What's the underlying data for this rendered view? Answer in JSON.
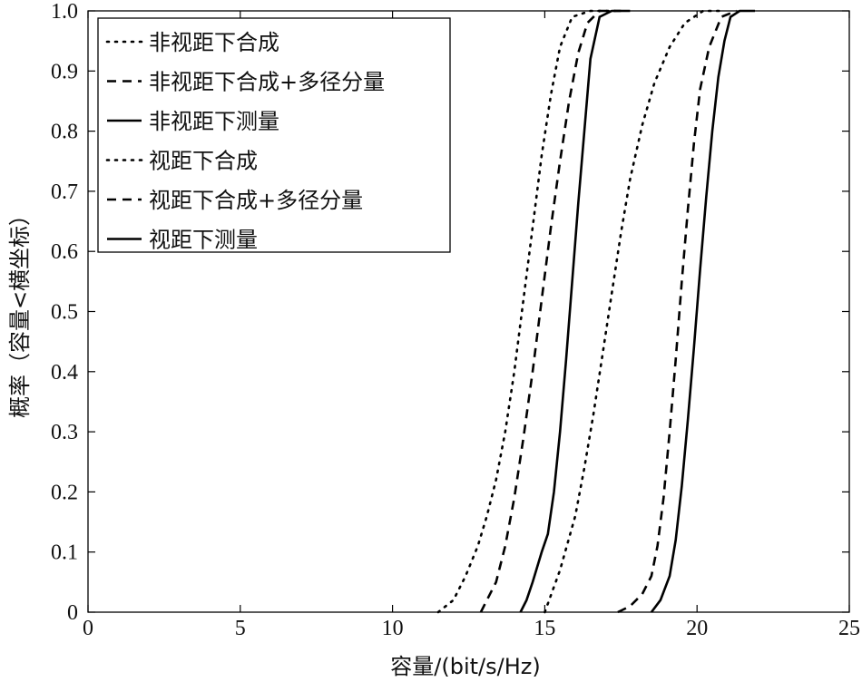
{
  "chart_data": {
    "type": "line",
    "title": "",
    "xlabel": "容量/(bit/s/Hz)",
    "ylabel": "概率（容量<横坐标）",
    "xlim": [
      0,
      25
    ],
    "ylim": [
      0,
      1
    ],
    "x_ticks": [
      "0",
      "5",
      "10",
      "15",
      "20",
      "25"
    ],
    "y_ticks": [
      "0",
      "0.1",
      "0.2",
      "0.3",
      "0.4",
      "0.5",
      "0.6",
      "0.7",
      "0.8",
      "0.9",
      "1.0"
    ],
    "grid": false,
    "legend_position": "top-left",
    "series": [
      {
        "name": "非视距下合成",
        "style": "dotted",
        "x": [
          11.5,
          12.0,
          12.4,
          12.8,
          13.1,
          13.4,
          13.7,
          14.0,
          14.3,
          14.6,
          14.9,
          15.2,
          15.5,
          15.9,
          16.5,
          17.3
        ],
        "y": [
          0.0,
          0.02,
          0.06,
          0.11,
          0.16,
          0.22,
          0.3,
          0.4,
          0.52,
          0.64,
          0.76,
          0.86,
          0.94,
          0.99,
          1.0,
          1.0
        ]
      },
      {
        "name": "非视距下合成+多径分量",
        "style": "dashed",
        "x": [
          12.9,
          13.1,
          13.4,
          13.7,
          14.0,
          14.3,
          14.6,
          14.9,
          15.2,
          15.5,
          15.8,
          16.1,
          16.4,
          16.8,
          17.5
        ],
        "y": [
          0.0,
          0.02,
          0.05,
          0.11,
          0.19,
          0.29,
          0.4,
          0.52,
          0.64,
          0.75,
          0.85,
          0.93,
          0.98,
          1.0,
          1.0
        ]
      },
      {
        "name": "非视距下测量",
        "style": "solid",
        "x": [
          14.2,
          14.4,
          14.6,
          14.9,
          15.1,
          15.3,
          15.5,
          15.7,
          15.9,
          16.1,
          16.3,
          16.5,
          16.8,
          17.2,
          17.8
        ],
        "y": [
          0.0,
          0.02,
          0.05,
          0.1,
          0.13,
          0.2,
          0.3,
          0.42,
          0.55,
          0.68,
          0.8,
          0.92,
          0.99,
          1.0,
          1.0
        ]
      },
      {
        "name": "视距下合成",
        "style": "dotted",
        "x": [
          15.0,
          15.5,
          16.0,
          16.3,
          16.6,
          16.9,
          17.2,
          17.5,
          17.8,
          18.2,
          18.6,
          19.1,
          19.6,
          20.2,
          20.8
        ],
        "y": [
          0.0,
          0.07,
          0.16,
          0.24,
          0.33,
          0.43,
          0.53,
          0.63,
          0.72,
          0.81,
          0.88,
          0.94,
          0.98,
          1.0,
          1.0
        ]
      },
      {
        "name": "视距下合成+多径分量",
        "style": "dashed",
        "x": [
          17.4,
          17.8,
          18.2,
          18.5,
          18.7,
          18.9,
          19.1,
          19.3,
          19.5,
          19.7,
          19.9,
          20.1,
          20.4,
          20.8,
          21.3
        ],
        "y": [
          0.0,
          0.01,
          0.03,
          0.06,
          0.11,
          0.19,
          0.3,
          0.42,
          0.55,
          0.67,
          0.78,
          0.87,
          0.94,
          0.99,
          1.0
        ]
      },
      {
        "name": "视距下测量",
        "style": "solid",
        "x": [
          18.5,
          18.8,
          19.1,
          19.3,
          19.5,
          19.7,
          19.9,
          20.1,
          20.3,
          20.5,
          20.7,
          20.9,
          21.1,
          21.4,
          21.9
        ],
        "y": [
          0.0,
          0.02,
          0.06,
          0.12,
          0.21,
          0.32,
          0.44,
          0.57,
          0.69,
          0.8,
          0.89,
          0.95,
          0.99,
          1.0,
          1.0
        ]
      }
    ]
  }
}
